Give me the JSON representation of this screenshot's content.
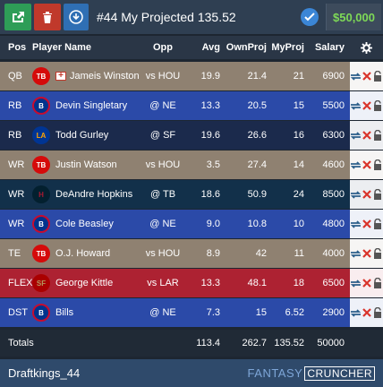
{
  "toolbar": {
    "title": "#44 My Projected 135.52",
    "salary": "$50,000"
  },
  "columns": {
    "pos": "Pos",
    "player": "Player Name",
    "opp": "Opp",
    "avg": "Avg",
    "own": "OwnProj",
    "my": "MyProj",
    "salary": "Salary"
  },
  "rows": [
    {
      "pos": "QB",
      "player": "Jameis Winston",
      "opp": "vs HOU",
      "avg": "19.9",
      "own": "21.4",
      "my": "21",
      "salary": "6900",
      "team": "TB",
      "injured": true
    },
    {
      "pos": "RB",
      "player": "Devin Singletary",
      "opp": "@ NE",
      "avg": "13.3",
      "own": "20.5",
      "my": "15",
      "salary": "5500",
      "team": "BUF"
    },
    {
      "pos": "RB",
      "player": "Todd Gurley",
      "opp": "@ SF",
      "avg": "19.6",
      "own": "26.6",
      "my": "16",
      "salary": "6300",
      "team": "LAR"
    },
    {
      "pos": "WR",
      "player": "Justin Watson",
      "opp": "vs HOU",
      "avg": "3.5",
      "own": "27.4",
      "my": "14",
      "salary": "4600",
      "team": "TB"
    },
    {
      "pos": "WR",
      "player": "DeAndre Hopkins",
      "opp": "@ TB",
      "avg": "18.6",
      "own": "50.9",
      "my": "24",
      "salary": "8500",
      "team": "HOU"
    },
    {
      "pos": "WR",
      "player": "Cole Beasley",
      "opp": "@ NE",
      "avg": "9.0",
      "own": "10.8",
      "my": "10",
      "salary": "4800",
      "team": "BUF"
    },
    {
      "pos": "TE",
      "player": "O.J. Howard",
      "opp": "vs HOU",
      "avg": "8.9",
      "own": "42",
      "my": "11",
      "salary": "4000",
      "team": "TB"
    },
    {
      "pos": "FLEX",
      "player": "George Kittle",
      "opp": "vs LAR",
      "avg": "13.3",
      "own": "48.1",
      "my": "18",
      "salary": "6500",
      "team": "SF"
    },
    {
      "pos": "DST",
      "player": "Bills",
      "opp": "@ NE",
      "avg": "7.3",
      "own": "15",
      "my": "6.52",
      "salary": "2900",
      "team": "BUF"
    }
  ],
  "totals": {
    "label": "Totals",
    "avg": "113.4",
    "own": "262.7",
    "my": "135.52",
    "salary": "50000"
  },
  "footer": {
    "name": "Draftkings_44",
    "brand_left": "FANTASY",
    "brand_right": "CRUNCHER"
  },
  "icons": {
    "export": "export-icon",
    "delete": "trash-icon",
    "download": "download-icon",
    "check": "check-circle-icon",
    "settings": "gear-icon",
    "swap": "swap-icon",
    "remove": "x-icon",
    "lock": "lock-icon"
  },
  "colors": {
    "qb_row": "#8f8171",
    "rb_row": "#2b4aa8",
    "flex_row": "#ad2232",
    "salary_text": "#7ed957"
  }
}
